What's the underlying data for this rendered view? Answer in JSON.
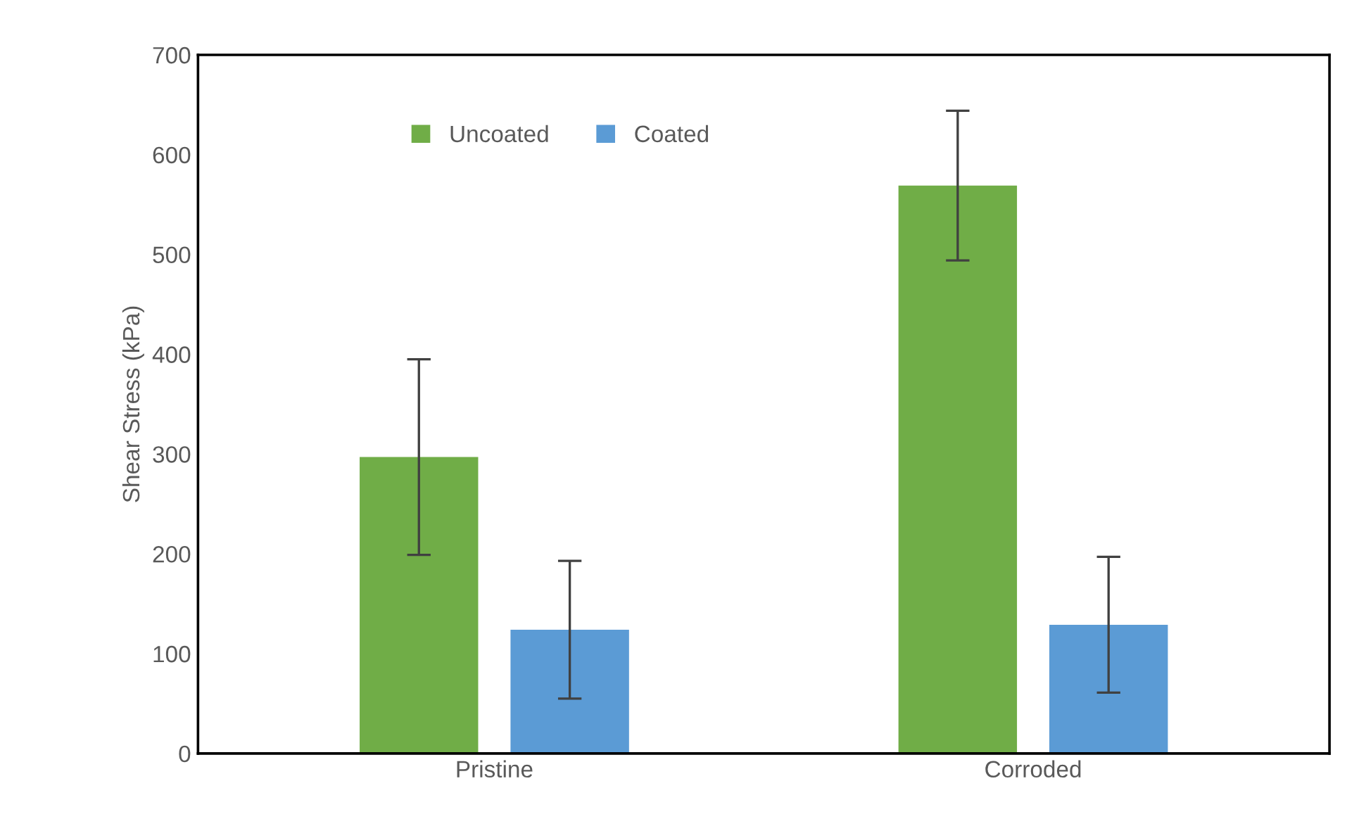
{
  "chart_data": {
    "type": "bar",
    "ylabel": "Shear Stress (kPa)",
    "categories": [
      "Pristine",
      "Corroded"
    ],
    "series": [
      {
        "name": "Uncoated",
        "color": "#70ad47",
        "values": [
          297,
          569
        ],
        "errors": [
          98,
          75
        ]
      },
      {
        "name": "Coated",
        "color": "#5b9bd5",
        "values": [
          124,
          129
        ],
        "errors": [
          69,
          68
        ]
      }
    ],
    "ylim": [
      0,
      700
    ],
    "yticks": [
      0,
      100,
      200,
      300,
      400,
      500,
      600,
      700
    ],
    "grid": false,
    "legend": "top left"
  }
}
